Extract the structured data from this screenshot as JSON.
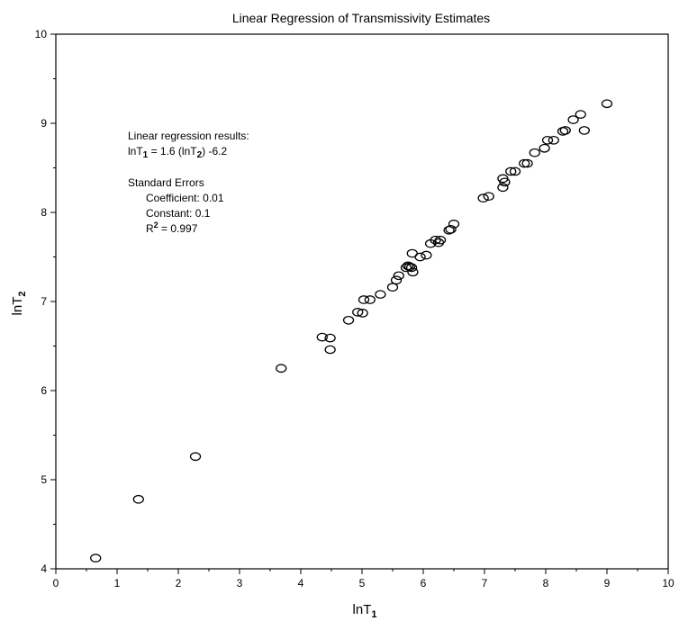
{
  "chart_data": {
    "type": "scatter",
    "title": "Linear Regression of Transmissivity Estimates",
    "xlabel": {
      "base": "lnT",
      "sub": "1"
    },
    "ylabel": {
      "base": "lnT",
      "sub": "2"
    },
    "xlim": [
      0,
      10
    ],
    "ylim": [
      4,
      10
    ],
    "x_ticks": [
      0,
      1,
      2,
      3,
      4,
      5,
      6,
      7,
      8,
      9,
      10
    ],
    "y_ticks": [
      4,
      5,
      6,
      7,
      8,
      9,
      10
    ],
    "grid": false,
    "marker": "open-ellipse",
    "annotation": {
      "heading": "Linear regression results:",
      "eq_a": "lnT",
      "eq_sub1": "1",
      "eq_b": " = 1.6 (lnT",
      "eq_sub2": "2",
      "eq_c": ") -6.2",
      "se_heading": "Standard Errors",
      "coef": "Coefficient: 0.01",
      "const": "Constant: 0.1",
      "r2_a": "R",
      "r2_sup": "2",
      "r2_b": " = 0.997"
    },
    "points": [
      [
        0.65,
        4.12
      ],
      [
        1.35,
        4.78
      ],
      [
        2.28,
        5.26
      ],
      [
        3.68,
        6.25
      ],
      [
        4.35,
        6.6
      ],
      [
        4.48,
        6.59
      ],
      [
        4.48,
        6.46
      ],
      [
        4.78,
        6.79
      ],
      [
        4.93,
        6.88
      ],
      [
        5.01,
        6.87
      ],
      [
        5.03,
        7.02
      ],
      [
        5.13,
        7.02
      ],
      [
        5.3,
        7.08
      ],
      [
        5.5,
        7.16
      ],
      [
        5.56,
        7.24
      ],
      [
        5.6,
        7.29
      ],
      [
        5.72,
        7.38
      ],
      [
        5.75,
        7.4
      ],
      [
        5.78,
        7.39
      ],
      [
        5.81,
        7.38
      ],
      [
        5.83,
        7.33
      ],
      [
        5.82,
        7.54
      ],
      [
        5.95,
        7.5
      ],
      [
        6.05,
        7.52
      ],
      [
        6.12,
        7.65
      ],
      [
        6.2,
        7.69
      ],
      [
        6.25,
        7.66
      ],
      [
        6.28,
        7.69
      ],
      [
        6.42,
        7.8
      ],
      [
        6.45,
        7.81
      ],
      [
        6.5,
        7.87
      ],
      [
        6.98,
        8.16
      ],
      [
        7.07,
        8.18
      ],
      [
        7.3,
        8.28
      ],
      [
        7.3,
        8.38
      ],
      [
        7.33,
        8.34
      ],
      [
        7.43,
        8.46
      ],
      [
        7.5,
        8.46
      ],
      [
        7.65,
        8.55
      ],
      [
        7.7,
        8.55
      ],
      [
        7.82,
        8.67
      ],
      [
        7.98,
        8.72
      ],
      [
        8.03,
        8.81
      ],
      [
        8.13,
        8.81
      ],
      [
        8.28,
        8.91
      ],
      [
        8.32,
        8.92
      ],
      [
        8.45,
        9.04
      ],
      [
        8.57,
        9.1
      ],
      [
        8.63,
        8.92
      ],
      [
        9.0,
        9.22
      ]
    ]
  }
}
